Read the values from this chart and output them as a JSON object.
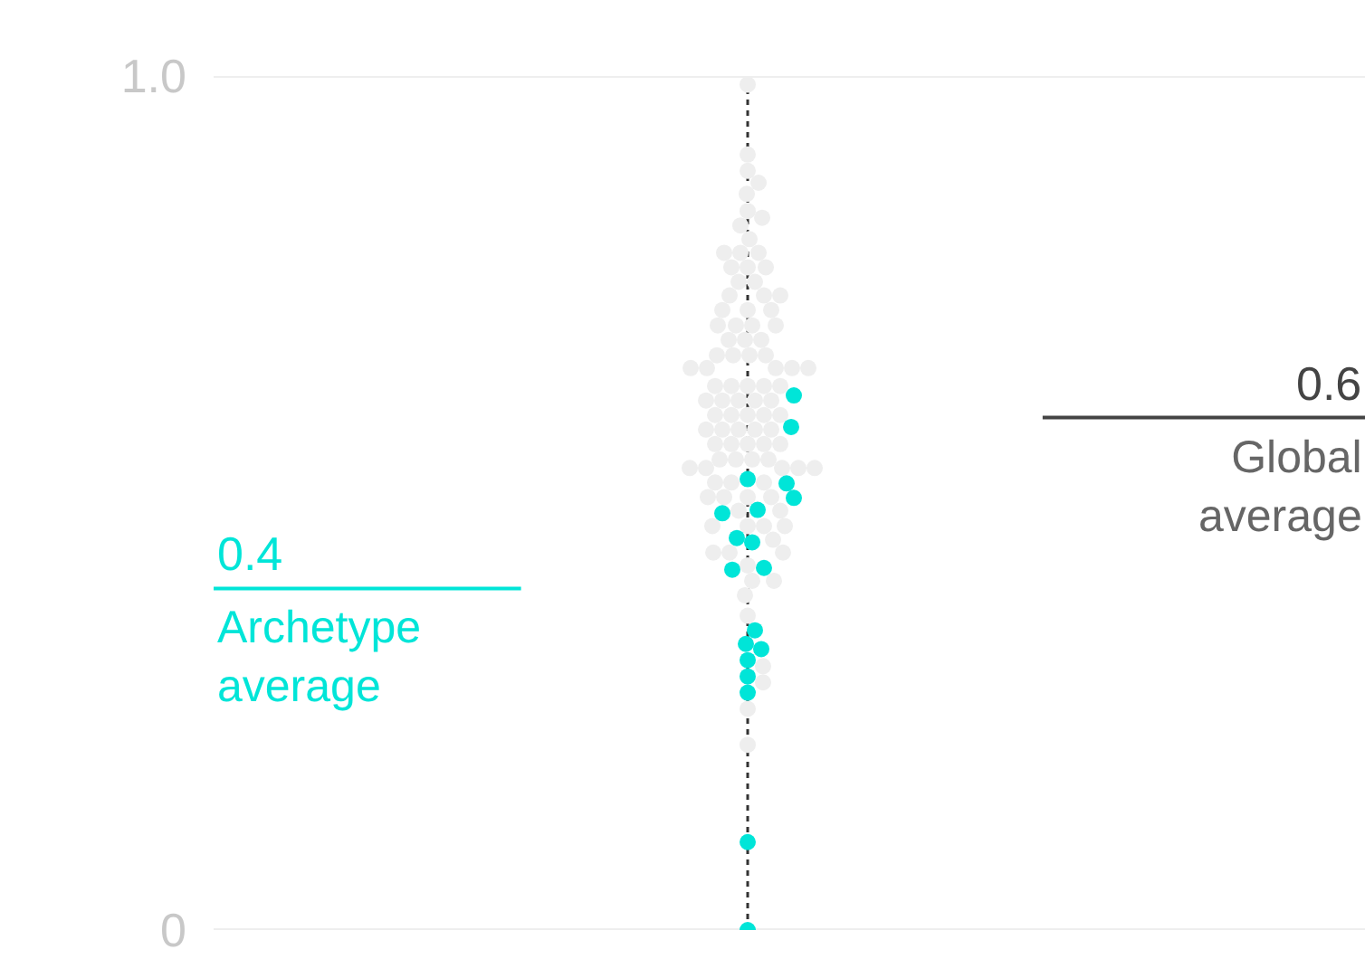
{
  "chart_data": {
    "type": "scatter",
    "categories": [
      null
    ],
    "ylim": [
      0,
      1
    ],
    "yticks": [
      0,
      {
        "value": 1,
        "label": "1.0"
      }
    ],
    "tick_labels": "y",
    "grid": "y",
    "marker": "circle",
    "series": [
      {
        "color": "#eeeeee",
        "x": [
          null,
          null,
          null,
          null,
          null,
          null,
          null,
          null,
          null,
          null,
          null,
          null,
          null,
          null,
          null,
          null,
          null,
          null,
          null,
          null,
          null,
          null,
          null,
          null,
          null,
          null,
          null,
          null,
          null,
          null,
          null,
          null,
          null,
          null,
          null,
          null,
          null,
          null,
          null,
          null,
          null,
          null,
          null,
          null,
          null,
          null,
          null,
          null,
          null,
          null,
          null,
          null,
          null,
          null,
          null,
          null,
          null,
          null,
          null,
          null,
          null,
          null,
          null,
          null,
          null,
          null,
          null,
          null,
          null,
          null,
          null,
          null,
          null,
          null,
          null,
          null,
          null,
          null,
          null,
          null,
          null,
          null,
          null,
          null,
          null,
          null,
          null,
          null,
          null,
          null,
          null,
          null,
          null,
          null,
          null,
          null,
          null,
          null,
          null
        ],
        "values": [
          0.99,
          0.908,
          0.889,
          0.875,
          0.862,
          0.842,
          0.834,
          0.825,
          0.809,
          0.793,
          0.793,
          0.793,
          0.776,
          0.776,
          0.776,
          0.759,
          0.759,
          0.743,
          0.743,
          0.743,
          0.726,
          0.726,
          0.726,
          0.708,
          0.708,
          0.708,
          0.708,
          0.691,
          0.691,
          0.691,
          0.673,
          0.673,
          0.673,
          0.673,
          0.658,
          0.658,
          0.658,
          0.658,
          0.658,
          0.637,
          0.637,
          0.637,
          0.637,
          0.637,
          0.62,
          0.62,
          0.62,
          0.62,
          0.62,
          0.603,
          0.603,
          0.603,
          0.603,
          0.603,
          0.586,
          0.586,
          0.586,
          0.586,
          0.586,
          0.569,
          0.569,
          0.569,
          0.569,
          0.569,
          0.551,
          0.551,
          0.551,
          0.551,
          0.541,
          0.541,
          0.541,
          0.541,
          0.541,
          0.524,
          0.524,
          0.524,
          0.507,
          0.507,
          0.507,
          0.507,
          0.491,
          0.491,
          0.473,
          0.473,
          0.473,
          0.473,
          0.457,
          0.442,
          0.442,
          0.442,
          0.427,
          0.409,
          0.409,
          0.392,
          0.368,
          0.309,
          0.29,
          0.259,
          0.217
        ]
      },
      {
        "color": "#00e5d8",
        "x": [
          null,
          null,
          null,
          null,
          null,
          null,
          null,
          null,
          null,
          null,
          null,
          null,
          null,
          null,
          null,
          null,
          null,
          null,
          null
        ],
        "values": [
          0.626,
          0.589,
          0.523,
          0.528,
          0.506,
          0.492,
          0.488,
          0.459,
          0.454,
          0.424,
          0.422,
          0.351,
          0.335,
          0.329,
          0.316,
          0.297,
          0.278,
          0.103,
          0
        ]
      }
    ],
    "ref_lines": [
      {
        "axis": "y",
        "value": 0.4,
        "label": "0.4",
        "color": "#00e5d8"
      },
      {
        "axis": "y",
        "value": 0.6,
        "label": "0.6",
        "color": "#444444"
      }
    ],
    "annotations": [
      "Archetype average",
      "Global average"
    ]
  }
}
